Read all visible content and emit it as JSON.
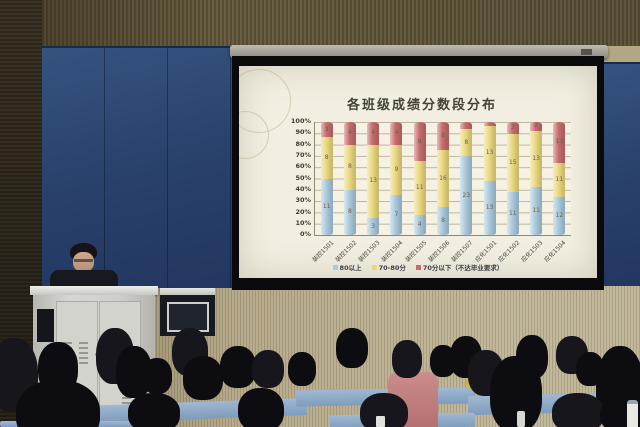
{
  "slide": {
    "title": "各班级成绩分数段分布"
  },
  "chart_data": {
    "type": "bar",
    "stacked": true,
    "normalized": "percent-stacked",
    "title": "各班级成绩分数段分布",
    "categories": [
      "装控1501",
      "装控1502",
      "装控1503",
      "装控1504",
      "装控1505",
      "装控1506",
      "装控1507",
      "应化1501",
      "应化1502",
      "应化1503",
      "应化1504"
    ],
    "series": [
      {
        "name": "80以上",
        "color": "#a9c9dc",
        "values": [
          11,
          8,
          3,
          7,
          4,
          8,
          23,
          13,
          11,
          11,
          12
        ]
      },
      {
        "name": "70-80分",
        "color": "#ead87e",
        "values": [
          8,
          8,
          13,
          9,
          11,
          16,
          8,
          13,
          15,
          13,
          11
        ]
      },
      {
        "name": "70分以下（不达毕业要求）",
        "color": "#c76b6b",
        "values": [
          3,
          4,
          4,
          4,
          8,
          8,
          2,
          1,
          3,
          2,
          13
        ]
      }
    ],
    "y_axis": {
      "unit": "%",
      "min": 0,
      "max": 100,
      "ticks": [
        "100%",
        "90%",
        "80%",
        "70%",
        "60%",
        "50%",
        "40%",
        "30%",
        "20%",
        "10%",
        "0%"
      ]
    },
    "legend_position": "bottom",
    "grid": true
  }
}
